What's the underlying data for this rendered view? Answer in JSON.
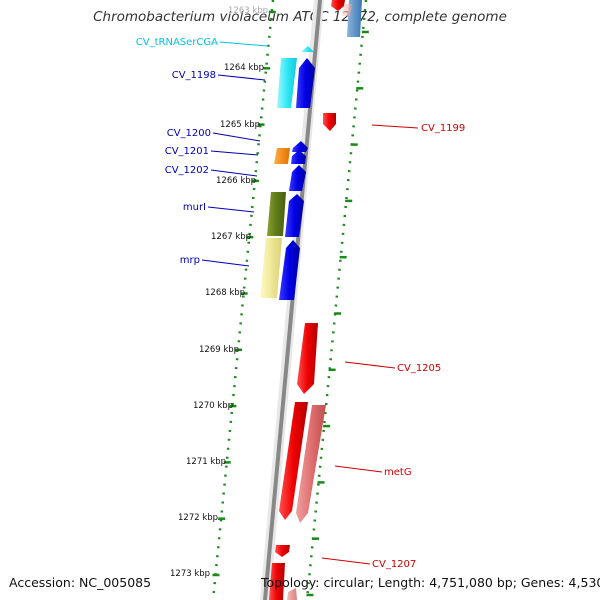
{
  "title": "Chromobacterium violaceum ATCC 12472, complete genome",
  "accession": "Accession: NC_005085",
  "topology": "Topology: circular; Length: 4,751,080 bp; Genes: 4,530",
  "colors": {
    "label_blue": "#0000b4",
    "label_red": "#cc0000",
    "label_cyan": "#00c0e8",
    "backbone": "#888888",
    "dots": "#1a8a1a"
  },
  "kbp_ticks": [
    {
      "label": "1263 kbp",
      "faded": true
    },
    {
      "label": "1264 kbp"
    },
    {
      "label": "1265 kbp"
    },
    {
      "label": "1266 kbp"
    },
    {
      "label": "1267 kbp"
    },
    {
      "label": "1268 kbp"
    },
    {
      "label": "1269 kbp"
    },
    {
      "label": "1270 kbp"
    },
    {
      "label": "1271 kbp"
    },
    {
      "label": "1272 kbp"
    },
    {
      "label": "1273 kbp"
    }
  ],
  "feature_labels": [
    {
      "id": "cv-trnasercga",
      "text": "CV_tRNASerCGA",
      "side": "left",
      "color": "#00c0e8"
    },
    {
      "id": "cv-1198",
      "text": "CV_1198",
      "side": "left",
      "color": "#0000b4"
    },
    {
      "id": "cv-1200",
      "text": "CV_1200",
      "side": "left",
      "color": "#0000b4"
    },
    {
      "id": "cv-1201",
      "text": "CV_1201",
      "side": "left",
      "color": "#0000b4"
    },
    {
      "id": "cv-1202",
      "text": "CV_1202",
      "side": "left",
      "color": "#0000b4"
    },
    {
      "id": "muri",
      "text": "murI",
      "side": "left",
      "color": "#0000b4"
    },
    {
      "id": "mrp",
      "text": "mrp",
      "side": "left",
      "color": "#0000b4"
    },
    {
      "id": "cv-1199",
      "text": "CV_1199",
      "side": "right",
      "color": "#cc0000"
    },
    {
      "id": "cv-1205",
      "text": "CV_1205",
      "side": "right",
      "color": "#cc0000"
    },
    {
      "id": "metg",
      "text": "metG",
      "side": "right",
      "color": "#cc0000"
    },
    {
      "id": "cv-1207",
      "text": "CV_1207",
      "side": "right",
      "color": "#cc0000"
    }
  ]
}
